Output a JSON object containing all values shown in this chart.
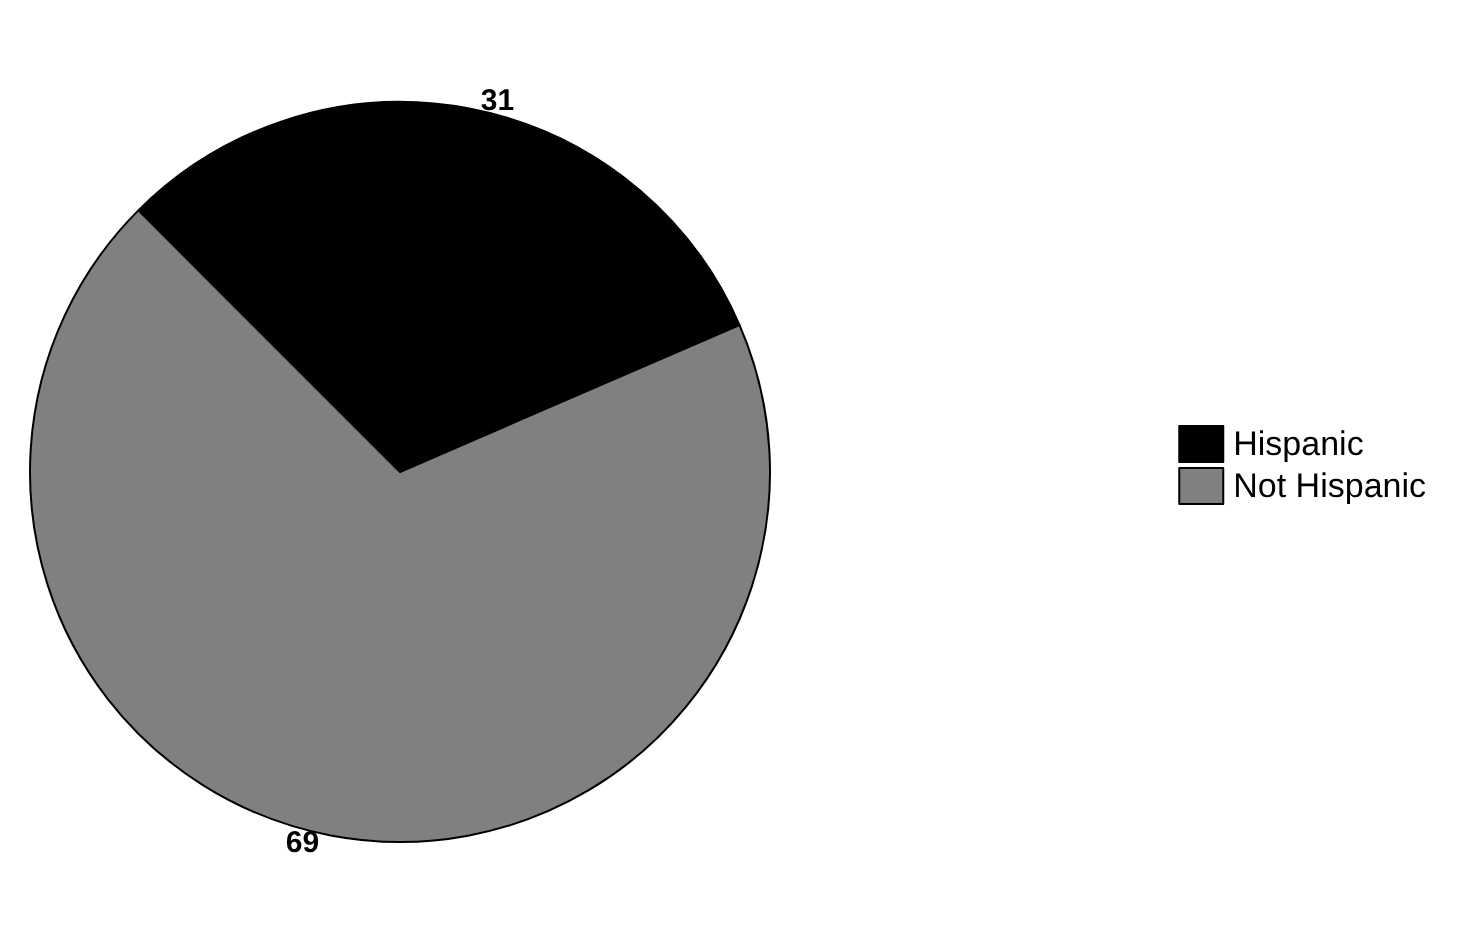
{
  "chart_data": {
    "type": "pie",
    "categories": [
      "Hispanic",
      "Not Hispanic"
    ],
    "values": [
      31,
      69
    ],
    "colors": [
      "#000000",
      "#808080"
    ],
    "data_labels": true,
    "legend": "right"
  }
}
